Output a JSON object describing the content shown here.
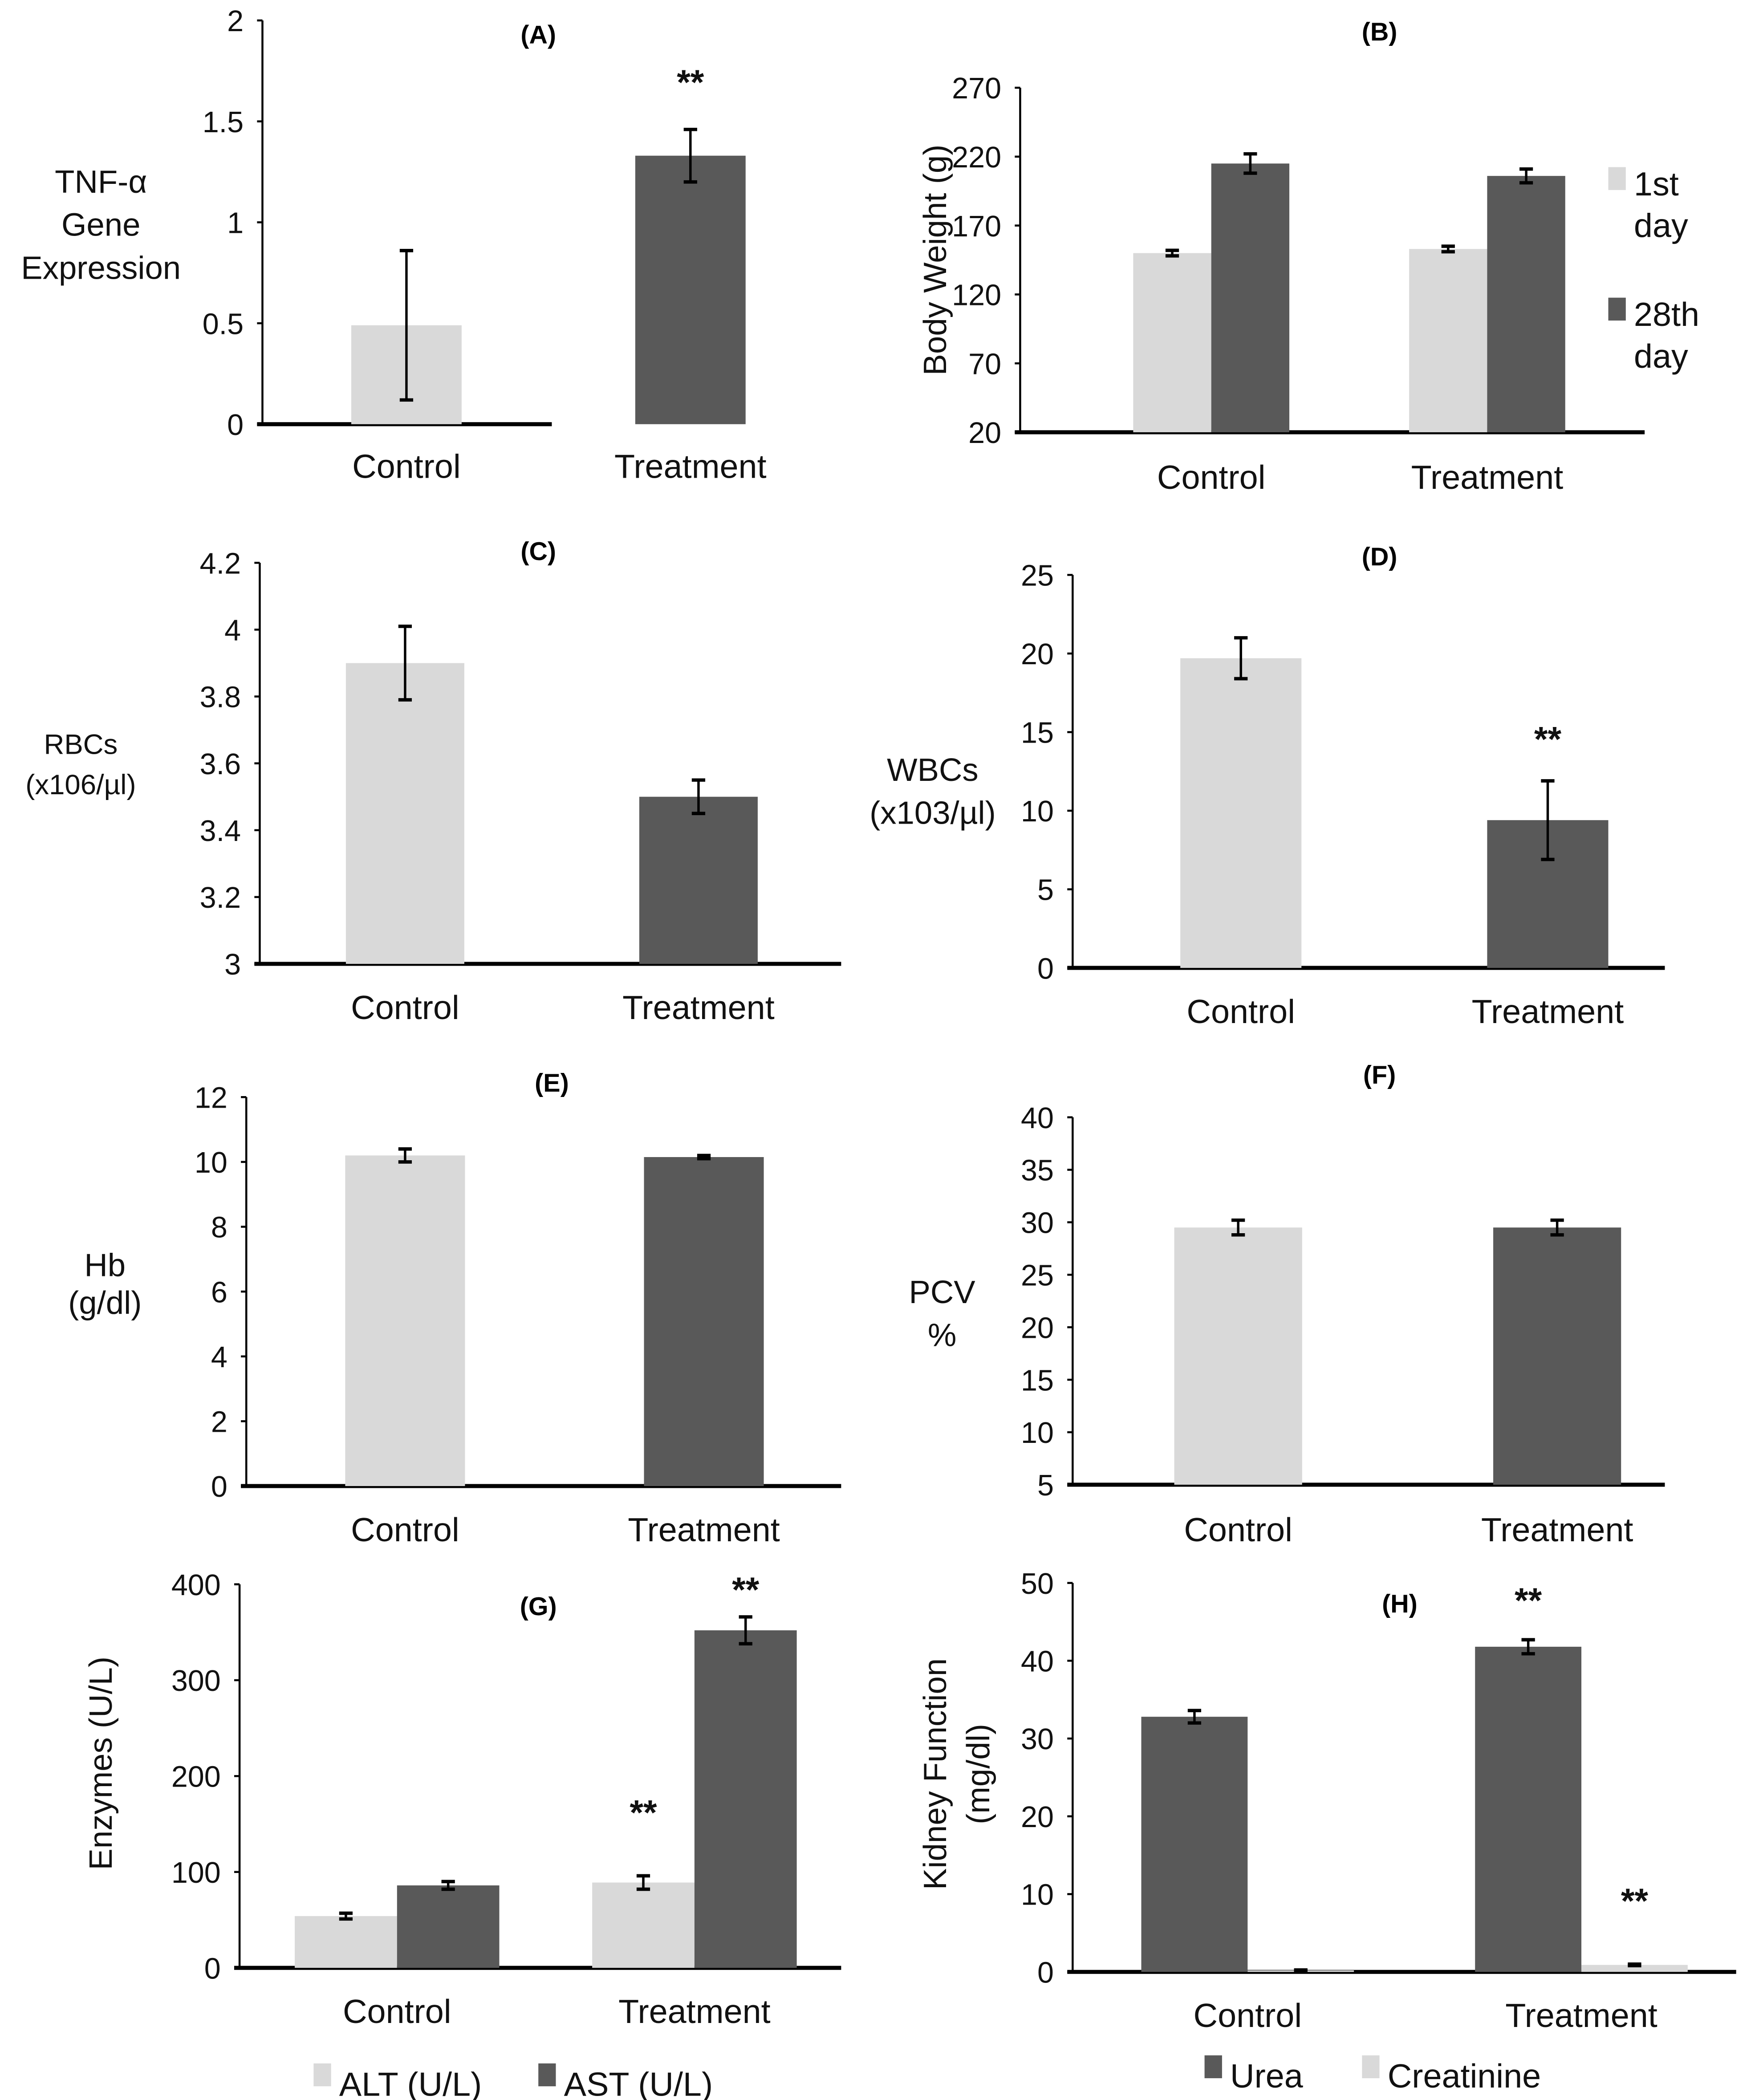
{
  "colors": {
    "light": "#d9d9d9",
    "dark": "#595959",
    "axis": "#000000"
  },
  "chart_data": [
    {
      "id": "A",
      "type": "bar",
      "title": "(A)",
      "ylabel": [
        "TNF-α",
        "Gene",
        "Expression"
      ],
      "ylim": [
        0,
        2
      ],
      "yticks": [
        "0",
        "0.5",
        "1",
        "1.5",
        "2"
      ],
      "categories": [
        "Control",
        "Treatment"
      ],
      "series": [
        {
          "name": "",
          "values": [
            0.49,
            1.33
          ],
          "errors": [
            0.37,
            0.13
          ],
          "colors": [
            "light",
            "dark"
          ],
          "significance": [
            "",
            "**"
          ]
        }
      ]
    },
    {
      "id": "B",
      "type": "bar",
      "title": "(B)",
      "ylabel": [
        "Body Weight (g)"
      ],
      "ylim": [
        20,
        270
      ],
      "yticks": [
        "20",
        "70",
        "120",
        "170",
        "220",
        "270"
      ],
      "categories": [
        "Control",
        "Treatment"
      ],
      "legend": [
        {
          "label": [
            "1st",
            "day"
          ],
          "color": "light"
        },
        {
          "label": [
            "28th",
            "day"
          ],
          "color": "dark"
        }
      ],
      "legend_position": "right",
      "series": [
        {
          "name": "1st day",
          "values": [
            150,
            153
          ],
          "errors": [
            2,
            2
          ],
          "colors": [
            "light",
            "light"
          ],
          "significance": [
            "",
            ""
          ]
        },
        {
          "name": "28th day",
          "values": [
            215,
            206
          ],
          "errors": [
            7,
            5
          ],
          "colors": [
            "dark",
            "dark"
          ],
          "significance": [
            "",
            ""
          ]
        }
      ]
    },
    {
      "id": "C",
      "type": "bar",
      "title": "(C)",
      "ylabel": [
        "RBCs",
        "(x106/µl)"
      ],
      "ylim": [
        3,
        4.2
      ],
      "yticks": [
        "3",
        "3.2",
        "3.4",
        "3.6",
        "3.8",
        "4",
        "4.2"
      ],
      "categories": [
        "Control",
        "Treatment"
      ],
      "series": [
        {
          "name": "",
          "values": [
            3.9,
            3.5
          ],
          "errors": [
            0.11,
            0.05
          ],
          "colors": [
            "light",
            "dark"
          ],
          "significance": [
            "",
            ""
          ]
        }
      ]
    },
    {
      "id": "D",
      "type": "bar",
      "title": "(D)",
      "ylabel": [
        "WBCs",
        "(x103/µl)"
      ],
      "ylim": [
        0,
        25
      ],
      "yticks": [
        "0",
        "5",
        "10",
        "15",
        "20",
        "25"
      ],
      "categories": [
        "Control",
        "Treatment"
      ],
      "series": [
        {
          "name": "",
          "values": [
            19.7,
            9.4
          ],
          "errors": [
            1.3,
            2.5
          ],
          "colors": [
            "light",
            "dark"
          ],
          "significance": [
            "",
            "**"
          ]
        }
      ]
    },
    {
      "id": "E",
      "type": "bar",
      "title": "(E)",
      "ylabel": [
        "Hb",
        "(g/dl)"
      ],
      "ylim": [
        0,
        12
      ],
      "yticks": [
        "0",
        "2",
        "4",
        "6",
        "8",
        "10",
        "12"
      ],
      "categories": [
        "Control",
        "Treatment"
      ],
      "series": [
        {
          "name": "",
          "values": [
            10.2,
            10.15
          ],
          "errors": [
            0.2,
            0.05
          ],
          "colors": [
            "light",
            "dark"
          ],
          "significance": [
            "",
            ""
          ]
        }
      ]
    },
    {
      "id": "F",
      "type": "bar",
      "title": "(F)",
      "ylabel": [
        "PCV",
        "%"
      ],
      "ylim": [
        5,
        40
      ],
      "yticks": [
        "5",
        "10",
        "15",
        "20",
        "25",
        "30",
        "35",
        "40"
      ],
      "categories": [
        "Control",
        "Treatment"
      ],
      "series": [
        {
          "name": "",
          "values": [
            29.5,
            29.5
          ],
          "errors": [
            0.7,
            0.7
          ],
          "colors": [
            "light",
            "dark"
          ],
          "significance": [
            "",
            ""
          ]
        }
      ]
    },
    {
      "id": "G",
      "type": "bar",
      "title": "(G)",
      "ylabel": [
        "Enzymes (U/L)"
      ],
      "ylim": [
        0,
        400
      ],
      "yticks": [
        "0",
        "100",
        "200",
        "300",
        "400"
      ],
      "categories": [
        "Control",
        "Treatment"
      ],
      "legend": [
        {
          "label": [
            "ALT (U/L)"
          ],
          "color": "light"
        },
        {
          "label": [
            "AST (U/L)"
          ],
          "color": "dark"
        }
      ],
      "legend_position": "bottom",
      "series": [
        {
          "name": "ALT (U/L)",
          "values": [
            54,
            89
          ],
          "errors": [
            3,
            7
          ],
          "colors": [
            "light",
            "light"
          ],
          "significance": [
            "",
            "**"
          ]
        },
        {
          "name": "AST (U/L)",
          "values": [
            86,
            352
          ],
          "errors": [
            4,
            14
          ],
          "colors": [
            "dark",
            "dark"
          ],
          "significance": [
            "",
            "**"
          ]
        }
      ]
    },
    {
      "id": "H",
      "type": "bar",
      "title": "(H)",
      "ylabel": [
        "Kidney Function",
        "(mg/dl)"
      ],
      "ylim": [
        0,
        50
      ],
      "yticks": [
        "0",
        "10",
        "20",
        "30",
        "40",
        "50"
      ],
      "categories": [
        "Control",
        "Treatment"
      ],
      "legend": [
        {
          "label": [
            "Urea"
          ],
          "color": "dark"
        },
        {
          "label": [
            "Creatinine"
          ],
          "color": "light"
        }
      ],
      "legend_position": "bottom",
      "series": [
        {
          "name": "Urea",
          "values": [
            32.8,
            41.8
          ],
          "errors": [
            0.8,
            0.9
          ],
          "colors": [
            "dark",
            "dark"
          ],
          "significance": [
            "",
            "**"
          ]
        },
        {
          "name": "Creatinine",
          "values": [
            0.2,
            0.9
          ],
          "errors": [
            0.05,
            0.1
          ],
          "colors": [
            "light",
            "light"
          ],
          "significance": [
            "",
            "**"
          ]
        }
      ]
    }
  ]
}
